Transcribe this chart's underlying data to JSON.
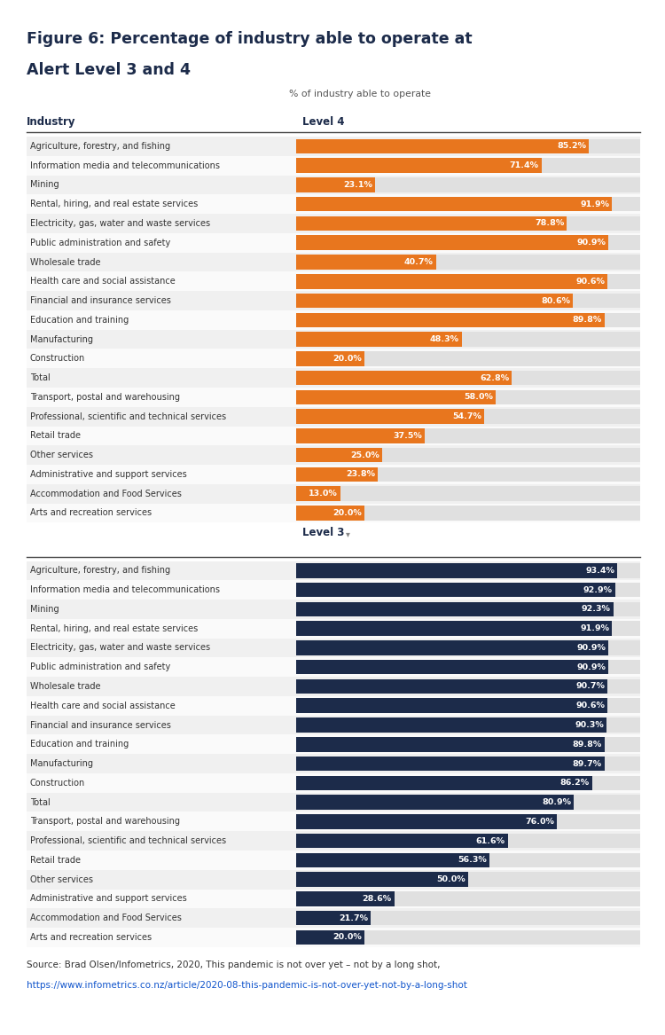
{
  "title_line1": "Figure 6: Percentage of industry able to operate at",
  "title_line2": "Alert Level 3 and 4",
  "subtitle": "% of industry able to operate",
  "industries": [
    "Agriculture, forestry, and fishing",
    "Information media and telecommunications",
    "Mining",
    "Rental, hiring, and real estate services",
    "Electricity, gas, water and waste services",
    "Public administration and safety",
    "Wholesale trade",
    "Health care and social assistance",
    "Financial and insurance services",
    "Education and training",
    "Manufacturing",
    "Construction",
    "Total",
    "Transport, postal and warehousing",
    "Professional, scientific and technical services",
    "Retail trade",
    "Other services",
    "Administrative and support services",
    "Accommodation and Food Services",
    "Arts and recreation services"
  ],
  "level4_values": [
    85.2,
    71.4,
    23.1,
    91.9,
    78.8,
    90.9,
    40.7,
    90.6,
    80.6,
    89.8,
    48.3,
    20.0,
    62.8,
    58.0,
    54.7,
    37.5,
    25.0,
    23.8,
    13.0,
    20.0
  ],
  "level3_values": [
    93.4,
    92.9,
    92.3,
    91.9,
    90.9,
    90.9,
    90.7,
    90.6,
    90.3,
    89.8,
    89.7,
    86.2,
    80.9,
    76.0,
    61.6,
    56.3,
    50.0,
    28.6,
    21.7,
    20.0
  ],
  "level4_color": "#E8761E",
  "level3_color": "#1C2B4A",
  "bar_bg_color": "#E0E0E0",
  "row_even_color": "#F0F0F0",
  "row_odd_color": "#FAFAFA",
  "title_color": "#1C2B4A",
  "header_color": "#1C2B4A",
  "source_text": "Source: Brad Olsen/Infometrics, 2020, This pandemic is not over yet – not by a long shot,",
  "source_url": "https://www.infometrics.co.nz/article/2020-08-this-pandemic-is-not-over-yet-not-by-a-long-shot"
}
